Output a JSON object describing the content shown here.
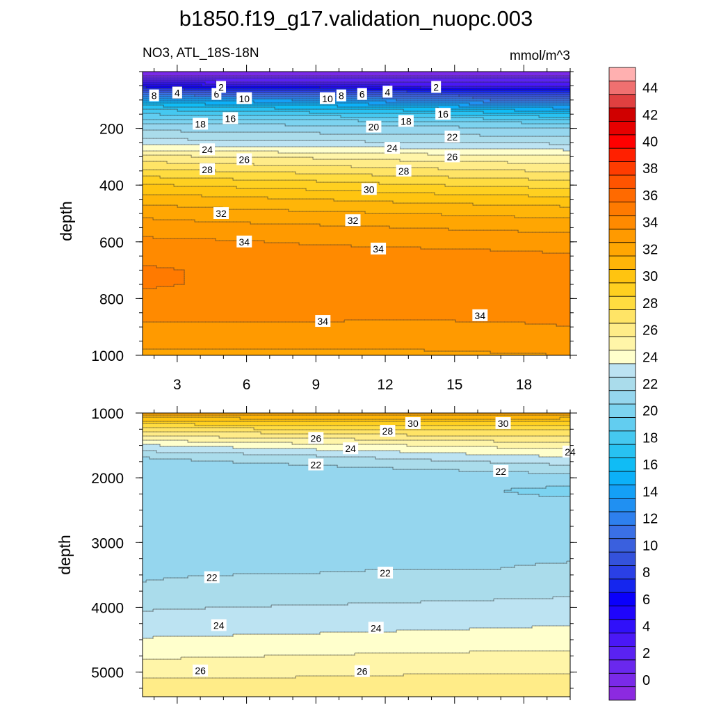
{
  "title": "b1850.f19_g17.validation_nuopc.003",
  "chart_data": {
    "type": "heatmap",
    "title": "b1850.f19_g17.validation_nuopc.003",
    "left_label": "NO3, ATL_18S-18N",
    "right_label": "mmol/m^3",
    "colorbar": {
      "min": -1,
      "step": 1,
      "count": 47,
      "tick_labels": [
        "0",
        "2",
        "4",
        "6",
        "8",
        "10",
        "12",
        "14",
        "16",
        "18",
        "20",
        "22",
        "24",
        "26",
        "28",
        "30",
        "32",
        "34",
        "36",
        "38",
        "40",
        "42",
        "44"
      ],
      "tick_values": [
        0,
        2,
        4,
        6,
        8,
        10,
        12,
        14,
        16,
        18,
        20,
        22,
        24,
        26,
        28,
        30,
        32,
        34,
        36,
        38,
        40,
        42,
        44
      ],
      "colors": [
        "#8c2ae0",
        "#7a2ae8",
        "#6a28ee",
        "#5a22f2",
        "#4a18f6",
        "#3010fa",
        "#1f05fb",
        "#0a00fb",
        "#1526ee",
        "#2a40e6",
        "#3452dc",
        "#3a60de",
        "#3a70e6",
        "#2e80ee",
        "#2090f2",
        "#14a0f6",
        "#0cb0f8",
        "#10bcf5",
        "#28c2f2",
        "#45c8f0",
        "#62cdf0",
        "#7cd3f0",
        "#95d6ee",
        "#aadceb",
        "#bce3f2",
        "#ffffcc",
        "#fff5a8",
        "#ffec88",
        "#ffe466",
        "#ffdc40",
        "#ffd020",
        "#ffc410",
        "#ffb508",
        "#ffa602",
        "#ff9a00",
        "#ff8a00",
        "#ff7a00",
        "#ff6a00",
        "#ff5400",
        "#ff3c00",
        "#ff2000",
        "#ff0000",
        "#e60000",
        "#d00000",
        "#e04040",
        "#f07070",
        "#ffb0b0"
      ]
    },
    "top": {
      "xlabel": "",
      "ylabel": "depth",
      "xlim": [
        1.5,
        20
      ],
      "ylim": [
        1000,
        0
      ],
      "x_ticks": [
        3,
        6,
        9,
        12,
        15,
        18
      ],
      "x_tick_labels": [
        "3",
        "6",
        "9",
        "12",
        "15",
        "18"
      ],
      "y_ticks": [
        200,
        400,
        600,
        800,
        1000
      ],
      "y_tick_labels": [
        "200",
        "400",
        "600",
        "800",
        "1000"
      ],
      "x": [
        1.5,
        5,
        9,
        13,
        17,
        20
      ],
      "depth": [
        0,
        25,
        50,
        75,
        100,
        125,
        150,
        175,
        200,
        225,
        250,
        300,
        350,
        400,
        450,
        500,
        550,
        600,
        650,
        700,
        750,
        800,
        850,
        900,
        950,
        1000
      ],
      "values": [
        [
          0,
          0,
          0,
          0,
          0,
          0
        ],
        [
          2,
          2,
          2,
          2,
          2,
          2
        ],
        [
          6,
          5,
          5,
          4,
          4,
          4
        ],
        [
          11,
          10,
          10,
          9,
          8,
          8
        ],
        [
          15,
          14.5,
          14,
          13,
          12,
          12
        ],
        [
          17.5,
          17,
          16.5,
          16,
          15,
          14.5
        ],
        [
          19,
          18.8,
          18.5,
          18.2,
          17.5,
          17
        ],
        [
          20.5,
          20.5,
          20.3,
          20,
          19.8,
          19.5
        ],
        [
          21.8,
          21.7,
          21.6,
          21.4,
          21.2,
          21
        ],
        [
          22.5,
          22.3,
          22.2,
          22.1,
          22,
          21.9
        ],
        [
          23.6,
          23.4,
          23.2,
          23.1,
          22.9,
          22.8
        ],
        [
          26.3,
          26,
          25.8,
          25.5,
          25.3,
          25.1
        ],
        [
          28.3,
          28,
          27.7,
          27.4,
          27.1,
          26.9
        ],
        [
          30.1,
          29.8,
          29.5,
          29.1,
          28.8,
          28.6
        ],
        [
          31.6,
          31.3,
          31,
          30.7,
          30.5,
          30.3
        ],
        [
          32.7,
          32.4,
          32.2,
          32,
          31.8,
          31.7
        ],
        [
          33.6,
          33.4,
          33.2,
          33,
          32.8,
          32.7
        ],
        [
          34.2,
          34.1,
          33.9,
          33.8,
          33.7,
          33.6
        ],
        [
          34.6,
          34.5,
          34.4,
          34.3,
          34.2,
          34.1
        ],
        [
          35.2,
          34.8,
          34.6,
          34.5,
          34.4,
          34.3
        ],
        [
          35.1,
          34.9,
          34.7,
          34.6,
          34.5,
          34.4
        ],
        [
          34.8,
          34.7,
          34.6,
          34.5,
          34.5,
          34.4
        ],
        [
          34.4,
          34.3,
          34.3,
          34.2,
          34.2,
          34.1
        ],
        [
          33.8,
          33.8,
          33.8,
          33.8,
          33.9,
          34
        ],
        [
          33.3,
          33.3,
          33.3,
          33.3,
          33.4,
          33.5
        ],
        [
          32.8,
          32.8,
          32.8,
          32.8,
          32.9,
          33
        ]
      ],
      "contour_labels": [
        {
          "x": 2,
          "d": 85,
          "t": "8"
        },
        {
          "x": 3,
          "d": 75,
          "t": "4"
        },
        {
          "x": 4.7,
          "d": 80,
          "t": "6"
        },
        {
          "x": 4.9,
          "d": 55,
          "t": "2"
        },
        {
          "x": 5.9,
          "d": 95,
          "t": "10"
        },
        {
          "x": 9.5,
          "d": 95,
          "t": "10"
        },
        {
          "x": 10.1,
          "d": 85,
          "t": "8"
        },
        {
          "x": 11.0,
          "d": 80,
          "t": "6"
        },
        {
          "x": 12.1,
          "d": 72,
          "t": "4"
        },
        {
          "x": 14.2,
          "d": 55,
          "t": "2"
        },
        {
          "x": 4,
          "d": 185,
          "t": "18"
        },
        {
          "x": 5.3,
          "d": 165,
          "t": "16"
        },
        {
          "x": 12.9,
          "d": 175,
          "t": "18"
        },
        {
          "x": 14.5,
          "d": 150,
          "t": "16"
        },
        {
          "x": 11.5,
          "d": 195,
          "t": "20"
        },
        {
          "x": 14.9,
          "d": 230,
          "t": "22"
        },
        {
          "x": 4.3,
          "d": 275,
          "t": "24"
        },
        {
          "x": 5.9,
          "d": 310,
          "t": "26"
        },
        {
          "x": 12.3,
          "d": 270,
          "t": "24"
        },
        {
          "x": 14.9,
          "d": 300,
          "t": "26"
        },
        {
          "x": 4.3,
          "d": 345,
          "t": "28"
        },
        {
          "x": 12.8,
          "d": 350,
          "t": "28"
        },
        {
          "x": 11.3,
          "d": 415,
          "t": "30"
        },
        {
          "x": 4.9,
          "d": 500,
          "t": "32"
        },
        {
          "x": 10.6,
          "d": 525,
          "t": "32"
        },
        {
          "x": 5.9,
          "d": 600,
          "t": "34"
        },
        {
          "x": 11.7,
          "d": 625,
          "t": "34"
        },
        {
          "x": 9.3,
          "d": 880,
          "t": "34"
        },
        {
          "x": 16.1,
          "d": 860,
          "t": "34"
        }
      ]
    },
    "bottom": {
      "xlabel": "",
      "ylabel": "depth",
      "xlim": [
        1.5,
        20
      ],
      "ylim": [
        5380,
        1000
      ],
      "y_ticks": [
        1000,
        2000,
        3000,
        4000,
        5000
      ],
      "y_tick_labels": [
        "1000",
        "2000",
        "3000",
        "4000",
        "5000"
      ],
      "x": [
        1.5,
        5,
        9,
        13,
        17,
        20
      ],
      "depth": [
        1000,
        1100,
        1200,
        1300,
        1400,
        1500,
        1600,
        1700,
        1800,
        1900,
        2000,
        2100,
        2200,
        2300,
        2400,
        2600,
        2800,
        3000,
        3200,
        3400,
        3600,
        3800,
        4000,
        4200,
        4400,
        4600,
        4800,
        5000,
        5200,
        5380
      ],
      "values": [
        [
          33,
          33,
          33,
          33,
          33,
          33
        ],
        [
          30.4,
          30.5,
          30.6,
          30.6,
          30.6,
          30.5
        ],
        [
          28.5,
          28.6,
          28.8,
          28.9,
          29,
          28.9
        ],
        [
          26.8,
          27,
          27.2,
          27.5,
          27.6,
          27.6
        ],
        [
          25.3,
          25.6,
          25.9,
          26.2,
          26.4,
          26.5
        ],
        [
          23.9,
          24.3,
          24.7,
          25,
          25.3,
          25.4
        ],
        [
          22.9,
          23.2,
          23.6,
          24,
          24.4,
          24.6
        ],
        [
          21.9,
          22.2,
          22.6,
          23.1,
          23.5,
          23.8
        ],
        [
          21.7,
          21.8,
          22,
          22.3,
          22.7,
          23
        ],
        [
          21.7,
          21.7,
          21.7,
          21.8,
          22,
          22.3
        ],
        [
          21.6,
          21.6,
          21.5,
          21.4,
          21.4,
          21.6
        ],
        [
          21.6,
          21.5,
          21.4,
          21.2,
          21.1,
          21.1
        ],
        [
          21.6,
          21.4,
          21.3,
          21.1,
          21,
          20.8
        ],
        [
          21.6,
          21.5,
          21.3,
          21.2,
          21.1,
          21
        ],
        [
          21.6,
          21.6,
          21.5,
          21.4,
          21.3,
          21.3
        ],
        [
          21.7,
          21.7,
          21.6,
          21.6,
          21.6,
          21.6
        ],
        [
          21.7,
          21.7,
          21.7,
          21.7,
          21.7,
          21.7
        ],
        [
          21.8,
          21.8,
          21.8,
          21.8,
          21.8,
          21.8
        ],
        [
          21.8,
          21.8,
          21.8,
          21.9,
          21.9,
          21.9
        ],
        [
          21.9,
          21.9,
          21.9,
          22,
          22,
          22.1
        ],
        [
          22,
          22.1,
          22.2,
          22.3,
          22.4,
          22.5
        ],
        [
          22.4,
          22.5,
          22.6,
          22.7,
          22.8,
          22.9
        ],
        [
          22.9,
          23,
          23.1,
          23.2,
          23.3,
          23.4
        ],
        [
          23.3,
          23.4,
          23.5,
          23.6,
          23.7,
          23.8
        ],
        [
          23.8,
          23.9,
          24,
          24.1,
          24.2,
          24.3
        ],
        [
          24.4,
          24.5,
          24.6,
          24.7,
          24.8,
          24.8
        ],
        [
          25,
          25.1,
          25.2,
          25.3,
          25.3,
          25.4
        ],
        [
          25.7,
          25.7,
          25.8,
          25.9,
          25.9,
          25.9
        ],
        [
          26.3,
          26.3,
          26.4,
          26.4,
          26.4,
          26.4
        ],
        [
          26.8,
          26.8,
          26.9,
          26.9,
          26.9,
          26.9
        ]
      ],
      "contour_labels": [
        {
          "x": 13.2,
          "d": 1160,
          "t": "30"
        },
        {
          "x": 17.1,
          "d": 1160,
          "t": "30"
        },
        {
          "x": 12.1,
          "d": 1280,
          "t": "28"
        },
        {
          "x": 9.0,
          "d": 1390,
          "t": "26"
        },
        {
          "x": 10.5,
          "d": 1550,
          "t": "24"
        },
        {
          "x": 20.0,
          "d": 1600,
          "t": "24"
        },
        {
          "x": 9.0,
          "d": 1800,
          "t": "22"
        },
        {
          "x": 17.0,
          "d": 1900,
          "t": "22"
        },
        {
          "x": 4.5,
          "d": 3540,
          "t": "22"
        },
        {
          "x": 12.0,
          "d": 3470,
          "t": "22"
        },
        {
          "x": 4.8,
          "d": 4280,
          "t": "24"
        },
        {
          "x": 11.6,
          "d": 4320,
          "t": "24"
        },
        {
          "x": 4.0,
          "d": 4980,
          "t": "26"
        },
        {
          "x": 11.0,
          "d": 4990,
          "t": "26"
        }
      ]
    }
  }
}
